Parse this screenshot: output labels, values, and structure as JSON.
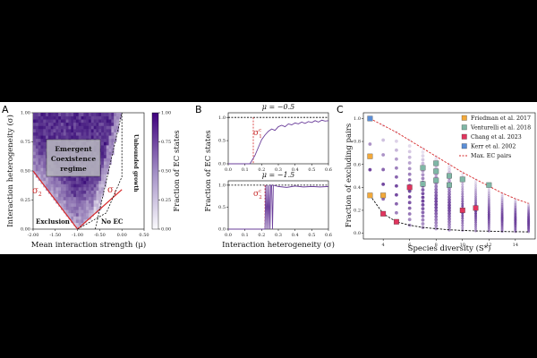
{
  "panels": {
    "A": {
      "letter": "A",
      "xlabel": "Mean interaction strength (μ)",
      "ylabel": "Interaction heterogeneity (σ)",
      "xticks": [
        "-2.00",
        "-1.50",
        "-1.00",
        "-0.50",
        "0.00",
        "0.50"
      ],
      "yticks": [
        "0.00",
        "0.25",
        "0.50",
        "0.75",
        "1.00"
      ],
      "region_label_lines": [
        "Emergent",
        "Coexistence",
        "regime"
      ],
      "exclusion_label": "Exclusion",
      "no_ec_label": "No EC",
      "unbounded_label": "Unbounded growth",
      "sigma2_label": "σ",
      "sigma2_sub": "2",
      "sigma1_label": "σ",
      "sigma1_sub": "1",
      "colorbar_label": "Fraction of EC states",
      "colorbar_ticks": [
        "0.00",
        "0.25",
        "0.50",
        "0.75",
        "1.00"
      ]
    },
    "B": {
      "letter": "B",
      "title_top": "μ = −0.5",
      "title_bottom": "μ = −1.5",
      "ylabel": "Fraction of EC states",
      "xlabel": "Interaction heterogeneity (σ)",
      "yticks": [
        "0.0",
        "0.5",
        "1.0"
      ],
      "xticks": [
        "0.0",
        "0.1",
        "0.2",
        "0.3",
        "0.4",
        "0.5",
        "0.6"
      ],
      "sigma1c_label": "σ",
      "sigma1c_sub": "1",
      "sigma1c_sup": "c",
      "sigma2c_label": "σ",
      "sigma2c_sub": "2",
      "sigma2c_sup": "c"
    },
    "C": {
      "letter": "C",
      "xlabel": "Species diversity (S*)",
      "ylabel": "Fraction of excluding pairs",
      "xticks": [
        "4",
        "6",
        "8",
        "10",
        "12",
        "14"
      ],
      "yticks": [
        "0.0",
        "0.2",
        "0.4",
        "0.6",
        "0.8",
        "1.0"
      ]
    }
  },
  "colors": {
    "purple": "#6a3d9a",
    "red_line": "#d62728",
    "friedman": "#f2a93b",
    "venturelli": "#7fb7a6",
    "chang": "#e0355e",
    "kerr": "#5b8ed6"
  },
  "chart_data": [
    {
      "type": "heatmap",
      "panel": "A",
      "xlabel": "Mean interaction strength (μ)",
      "ylabel": "Interaction heterogeneity (σ)",
      "xlim": [
        -2.0,
        0.5
      ],
      "ylim": [
        0.0,
        1.0
      ],
      "colorbar": {
        "label": "Fraction of EC states",
        "range": [
          0.0,
          1.0
        ]
      },
      "sigma1_boundary": {
        "x": [
          -1.0,
          0.0
        ],
        "y": [
          0.0,
          0.34
        ]
      },
      "sigma2_boundary": {
        "x": [
          -2.0,
          -1.0
        ],
        "y": [
          0.5,
          0.0
        ]
      },
      "unbounded_boundary": {
        "x": [
          -1.0,
          -0.35,
          0.0,
          0.0
        ],
        "y": [
          0.0,
          0.14,
          0.45,
          1.0
        ]
      }
    },
    {
      "type": "line",
      "panel": "B-top",
      "title": "μ = −0.5",
      "xlim": [
        0.0,
        0.6
      ],
      "ylim": [
        0.0,
        1.1
      ],
      "critical_sigma": 0.15,
      "series": [
        {
          "x": [
            0.0,
            0.13,
            0.16,
            0.18,
            0.2,
            0.22,
            0.24,
            0.26,
            0.28,
            0.3,
            0.32,
            0.34,
            0.36,
            0.38,
            0.4,
            0.42,
            0.44,
            0.46,
            0.48,
            0.5,
            0.52,
            0.54,
            0.56,
            0.58,
            0.6
          ],
          "y": [
            0.0,
            0.0,
            0.18,
            0.35,
            0.52,
            0.62,
            0.7,
            0.75,
            0.72,
            0.8,
            0.83,
            0.8,
            0.86,
            0.84,
            0.88,
            0.86,
            0.9,
            0.87,
            0.91,
            0.89,
            0.93,
            0.9,
            0.94,
            0.92,
            0.93
          ]
        }
      ]
    },
    {
      "type": "line",
      "panel": "B-bottom",
      "title": "μ = −1.5",
      "xlim": [
        0.0,
        0.6
      ],
      "ylim": [
        0.0,
        1.1
      ],
      "critical_sigma": 0.22,
      "series": [
        {
          "x": [
            0.0,
            0.22,
            0.225,
            0.23,
            0.235,
            0.24,
            0.245,
            0.25,
            0.255,
            0.26,
            0.265,
            0.27,
            0.3,
            0.35,
            0.4,
            0.45,
            0.5,
            0.55,
            0.6
          ],
          "y": [
            0.0,
            0.0,
            1.0,
            0.0,
            1.0,
            0.0,
            1.0,
            0.0,
            1.0,
            1.0,
            0.0,
            1.0,
            0.97,
            0.95,
            0.98,
            0.96,
            0.97,
            0.96,
            0.97
          ]
        }
      ]
    },
    {
      "type": "scatter",
      "panel": "C",
      "xlabel": "Species diversity (S*)",
      "ylabel": "Fraction of excluding pairs",
      "xlim": [
        2.5,
        15.5
      ],
      "ylim": [
        -0.05,
        1.05
      ],
      "legend": {
        "placement": "top-right",
        "entries": [
          "Friedman et al. 2017",
          "Venturelli et al. 2018",
          "Chang et al. 2023",
          "Kerr et al. 2002",
          "Max. EC pairs"
        ]
      },
      "max_ec_curve": {
        "x": [
          3,
          4,
          5,
          6,
          7,
          8,
          9,
          10,
          11,
          12,
          13,
          14,
          15
        ],
        "y": [
          1.0,
          0.94,
          0.88,
          0.81,
          0.74,
          0.67,
          0.6,
          0.53,
          0.47,
          0.41,
          0.35,
          0.3,
          0.26
        ]
      },
      "min_curve": {
        "x": [
          3,
          4,
          5,
          6,
          7,
          8,
          9,
          10,
          11,
          12,
          13,
          14,
          15
        ],
        "y": [
          0.33,
          0.17,
          0.1,
          0.07,
          0.05,
          0.04,
          0.03,
          0.025,
          0.02,
          0.018,
          0.015,
          0.013,
          0.012
        ]
      },
      "series": [
        {
          "name": "Friedman et al. 2017",
          "x": [
            3,
            3,
            4
          ],
          "y": [
            0.33,
            0.67,
            0.33
          ]
        },
        {
          "name": "Venturelli et al. 2018",
          "x": [
            7,
            7,
            8,
            8,
            8,
            9,
            9,
            10,
            12
          ],
          "y": [
            0.57,
            0.43,
            0.61,
            0.54,
            0.46,
            0.5,
            0.42,
            0.47,
            0.42
          ]
        },
        {
          "name": "Chang et al. 2023",
          "x": [
            4,
            5,
            6,
            10,
            11
          ],
          "y": [
            0.17,
            0.1,
            0.4,
            0.2,
            0.22
          ]
        },
        {
          "name": "Kerr et al. 2002",
          "x": [
            3
          ],
          "y": [
            1.0
          ]
        }
      ]
    }
  ]
}
